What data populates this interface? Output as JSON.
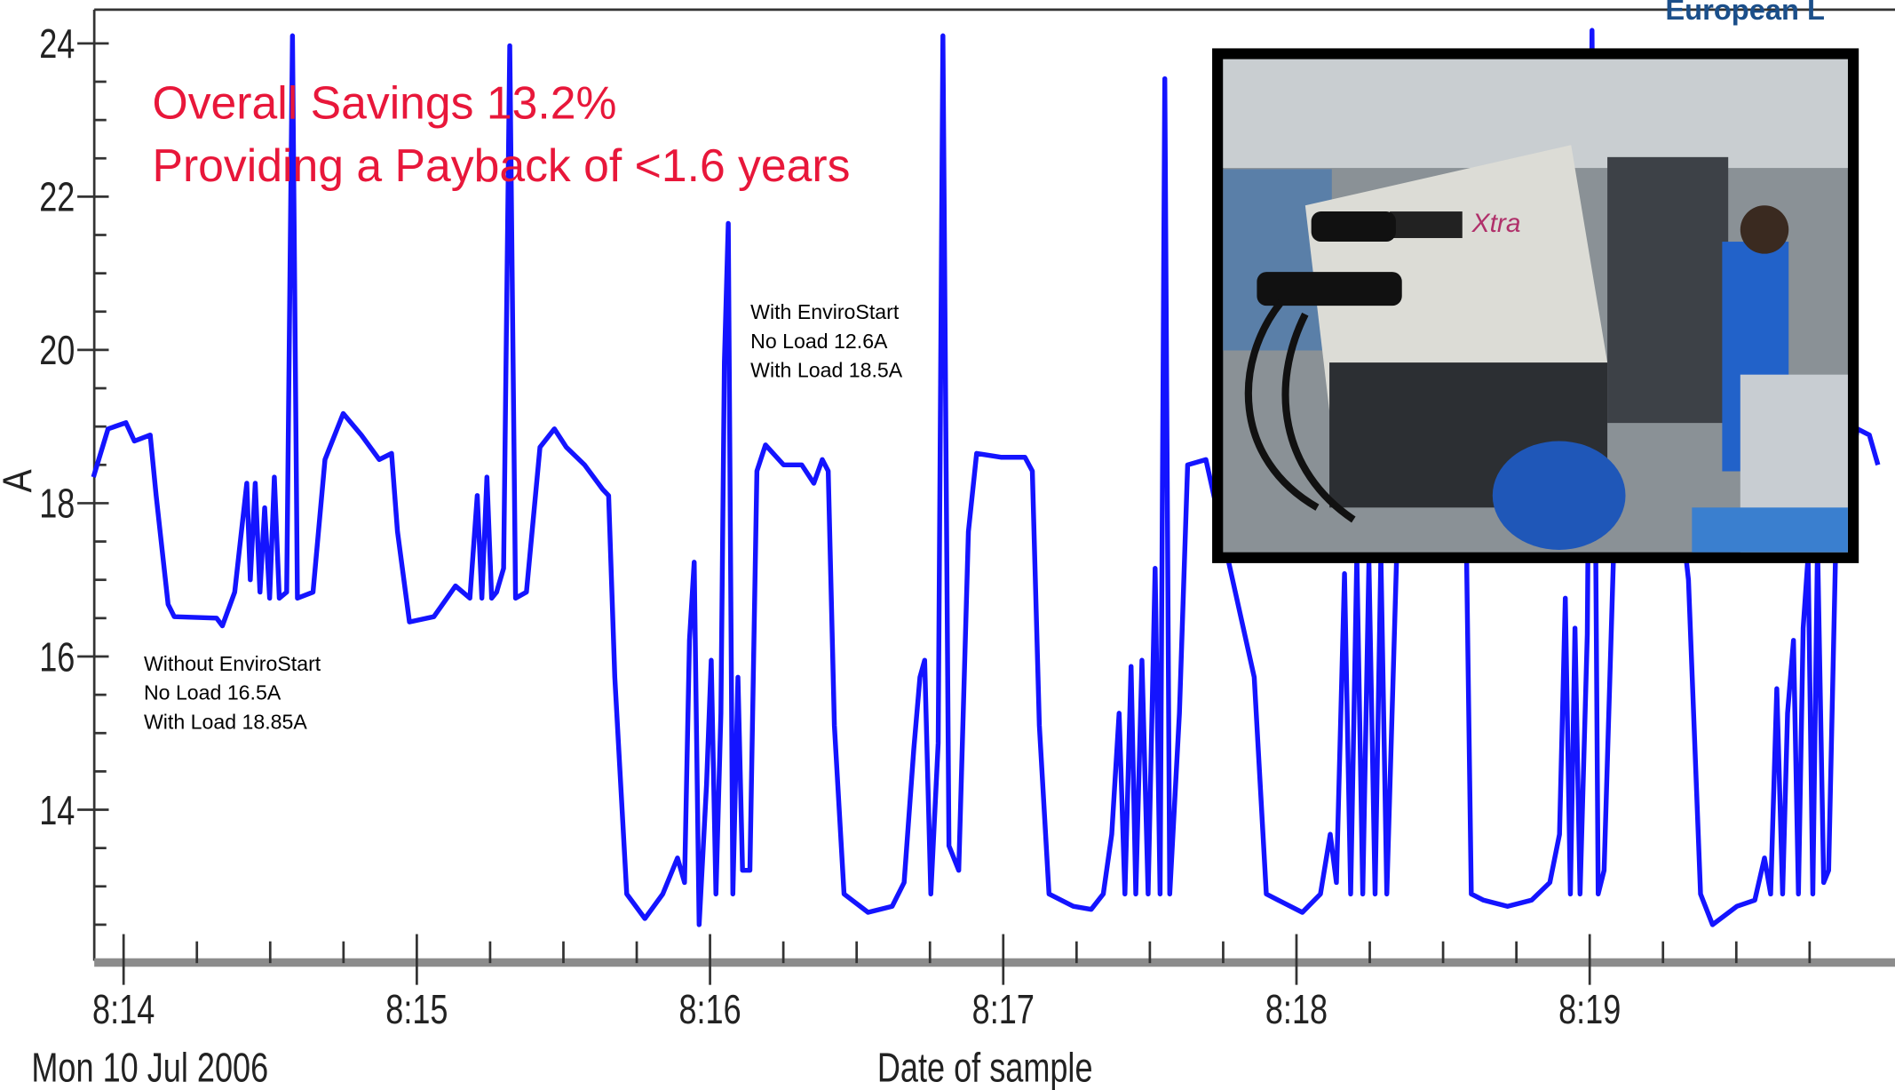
{
  "chart_data": {
    "type": "line",
    "brand_text": "European L",
    "headline": [
      "Overall Savings 13.2%",
      "Providing a Payback of <1.6 years"
    ],
    "notes": [
      [
        "With EnviroStart",
        "No Load 12.6A",
        "With Load 18.5A"
      ],
      [
        "Without EnviroStart",
        "No Load 16.5A",
        "With Load 18.85A"
      ]
    ],
    "ylabel": "A",
    "xlabel": "Date of sample",
    "date_label": "Mon 10 Jul 2006",
    "color": "#1414ff",
    "xlim": [
      493.9,
      500.0
    ],
    "ylim": [
      12.03,
      24.44
    ],
    "xticks": [
      {
        "value": 494,
        "label": "8:14"
      },
      {
        "value": 495,
        "label": "8:15"
      },
      {
        "value": 496,
        "label": "8:16"
      },
      {
        "value": 497,
        "label": "8:17"
      },
      {
        "value": 498,
        "label": "8:18"
      },
      {
        "value": 499,
        "label": "8:19"
      }
    ],
    "xminorticks": [
      494.25,
      494.5,
      494.75,
      495.25,
      495.5,
      495.75,
      496.25,
      496.5,
      496.75,
      497.25,
      497.5,
      497.75,
      498.25,
      498.5,
      498.75,
      499.25,
      499.5,
      499.75
    ],
    "yticks": [
      14,
      16,
      18,
      20,
      22,
      24
    ],
    "yminorticks": [
      12.5,
      13,
      13.5,
      14.5,
      15,
      15.5,
      16.5,
      17,
      17.5,
      18.5,
      19,
      19.5,
      20.5,
      21,
      21.5,
      22.5,
      23,
      23.5
    ],
    "x": [
      493.897,
      493.947,
      494.008,
      494.037,
      494.091,
      494.111,
      494.152,
      494.173,
      494.317,
      494.337,
      494.379,
      494.42,
      494.432,
      494.449,
      494.465,
      494.481,
      494.498,
      494.514,
      494.531,
      494.556,
      494.576,
      494.593,
      494.646,
      494.687,
      494.749,
      494.811,
      494.872,
      494.914,
      494.934,
      494.975,
      495.058,
      495.132,
      495.181,
      495.206,
      495.222,
      495.239,
      495.255,
      495.272,
      495.296,
      495.317,
      495.337,
      495.374,
      495.42,
      495.469,
      495.51,
      495.572,
      495.634,
      495.654,
      495.675,
      495.716,
      495.778,
      495.839,
      495.889,
      495.913,
      495.93,
      495.946,
      495.963,
      495.988,
      496.004,
      496.02,
      496.037,
      496.049,
      496.062,
      496.078,
      496.095,
      496.111,
      496.136,
      496.16,
      496.189,
      496.251,
      496.313,
      496.354,
      496.383,
      496.403,
      496.424,
      496.457,
      496.539,
      496.621,
      496.662,
      496.695,
      496.716,
      496.732,
      496.753,
      496.778,
      496.794,
      496.815,
      496.848,
      496.881,
      496.909,
      496.992,
      497.074,
      497.099,
      497.123,
      497.156,
      497.239,
      497.3,
      497.341,
      497.37,
      497.395,
      497.415,
      497.436,
      497.452,
      497.473,
      497.494,
      497.518,
      497.535,
      497.551,
      497.568,
      497.601,
      497.629,
      497.691,
      497.856,
      497.897,
      497.938,
      498.02,
      498.082,
      498.115,
      498.136,
      498.164,
      498.185,
      498.206,
      498.226,
      498.247,
      498.268,
      498.288,
      498.308,
      498.35,
      498.514,
      498.576,
      498.596,
      498.638,
      498.72,
      498.802,
      498.864,
      498.897,
      498.917,
      498.934,
      498.95,
      498.967,
      498.992,
      499.008,
      499.029,
      499.049,
      499.09,
      499.296,
      499.337,
      499.378,
      499.419,
      499.502,
      499.563,
      499.596,
      499.617,
      499.638,
      499.658,
      499.675,
      499.695,
      499.712,
      499.728,
      499.745,
      499.761,
      499.777,
      499.798,
      499.815,
      499.839,
      499.913,
      499.954,
      499.983
    ],
    "values": [
      18.34,
      18.97,
      19.05,
      18.81,
      18.89,
      18.1,
      16.68,
      16.52,
      16.5,
      16.4,
      16.84,
      18.26,
      17.0,
      18.26,
      16.84,
      17.94,
      16.76,
      18.34,
      16.76,
      16.84,
      24.1,
      16.76,
      16.84,
      18.57,
      19.17,
      18.89,
      18.57,
      18.65,
      17.63,
      16.45,
      16.52,
      16.92,
      16.76,
      18.1,
      16.76,
      18.34,
      16.76,
      16.84,
      17.15,
      23.97,
      16.76,
      16.84,
      18.73,
      18.97,
      18.73,
      18.5,
      18.18,
      18.1,
      15.73,
      12.9,
      12.58,
      12.9,
      13.37,
      13.05,
      16.21,
      17.23,
      12.5,
      14.32,
      15.95,
      12.9,
      15.26,
      19.84,
      21.65,
      12.9,
      15.73,
      13.21,
      13.21,
      18.42,
      18.76,
      18.5,
      18.5,
      18.26,
      18.57,
      18.42,
      15.1,
      12.9,
      12.66,
      12.74,
      13.05,
      14.79,
      15.73,
      15.95,
      12.9,
      14.87,
      24.1,
      13.53,
      13.21,
      17.63,
      18.65,
      18.6,
      18.6,
      18.42,
      15.1,
      12.9,
      12.74,
      12.7,
      12.9,
      13.68,
      15.26,
      12.9,
      15.87,
      12.9,
      15.95,
      12.9,
      17.15,
      12.9,
      23.54,
      12.9,
      15.26,
      18.5,
      18.57,
      15.73,
      12.9,
      12.82,
      12.66,
      12.9,
      13.68,
      13.05,
      17.08,
      12.9,
      17.31,
      12.9,
      17.23,
      12.9,
      17.31,
      12.9,
      18.42,
      18.5,
      18.42,
      12.9,
      12.82,
      12.74,
      12.82,
      13.05,
      13.68,
      16.76,
      12.9,
      16.37,
      12.9,
      16.29,
      24.17,
      12.9,
      13.21,
      18.42,
      18.42,
      17.0,
      12.9,
      12.5,
      12.74,
      12.82,
      13.37,
      12.9,
      15.58,
      12.9,
      15.26,
      16.21,
      12.9,
      16.37,
      17.31,
      12.9,
      17.47,
      13.05,
      13.21,
      17.39,
      18.97,
      18.89,
      18.5
    ]
  }
}
